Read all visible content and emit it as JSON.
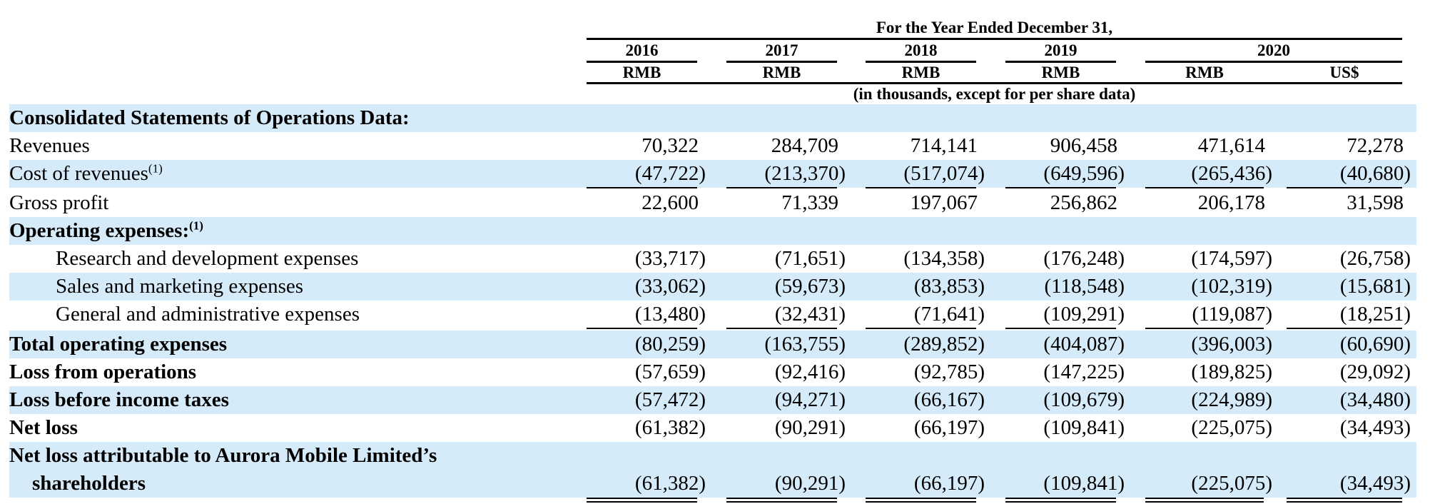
{
  "header": {
    "period_title": "For the Year Ended December 31,",
    "years": [
      "2016",
      "2017",
      "2018",
      "2019",
      "2020"
    ],
    "currencies": [
      "RMB",
      "RMB",
      "RMB",
      "RMB",
      "RMB",
      "US$"
    ],
    "units_note": "(in thousands, except for per share data)"
  },
  "colors": {
    "row_shade": "#d6ebf9"
  },
  "rows": [
    {
      "label": "Consolidated Statements of Operations Data:",
      "style": "bold",
      "shade": true,
      "values": []
    },
    {
      "label": "Revenues",
      "style": "normal",
      "shade": false,
      "values": [
        "70,322",
        "284,709",
        "714,141",
        "906,458",
        "471,614",
        "72,278"
      ]
    },
    {
      "label": "Cost of revenues",
      "footnote": "(1)",
      "style": "normal",
      "shade": true,
      "values": [
        "(47,722)",
        "(213,370)",
        "(517,074)",
        "(649,596)",
        "(265,436)",
        "(40,680)"
      ]
    },
    {
      "label": "Gross profit",
      "style": "normal",
      "shade": false,
      "values": [
        "22,600",
        "71,339",
        "197,067",
        "256,862",
        "206,178",
        "31,598"
      ]
    },
    {
      "label": "Operating expenses:",
      "footnote": "(1)",
      "style": "bold",
      "shade": true,
      "values": []
    },
    {
      "label": "Research and development expenses",
      "style": "indent",
      "shade": false,
      "values": [
        "(33,717)",
        "(71,651)",
        "(134,358)",
        "(176,248)",
        "(174,597)",
        "(26,758)"
      ]
    },
    {
      "label": "Sales and marketing expenses",
      "style": "indent",
      "shade": true,
      "values": [
        "(33,062)",
        "(59,673)",
        "(83,853)",
        "(118,548)",
        "(102,319)",
        "(15,681)"
      ]
    },
    {
      "label": "General and administrative expenses",
      "style": "indent",
      "shade": false,
      "values": [
        "(13,480)",
        "(32,431)",
        "(71,641)",
        "(109,291)",
        "(119,087)",
        "(18,251)"
      ]
    },
    {
      "label": "Total operating expenses",
      "style": "bold",
      "shade": true,
      "values": [
        "(80,259)",
        "(163,755)",
        "(289,852)",
        "(404,087)",
        "(396,003)",
        "(60,690)"
      ]
    },
    {
      "label": "Loss from operations",
      "style": "bold",
      "shade": false,
      "values": [
        "(57,659)",
        "(92,416)",
        "(92,785)",
        "(147,225)",
        "(189,825)",
        "(29,092)"
      ]
    },
    {
      "label": "Loss before income taxes",
      "style": "bold",
      "shade": true,
      "values": [
        "(57,472)",
        "(94,271)",
        "(66,167)",
        "(109,679)",
        "(224,989)",
        "(34,480)"
      ]
    },
    {
      "label": "Net loss",
      "style": "bold",
      "shade": false,
      "values": [
        "(61,382)",
        "(90,291)",
        "(66,197)",
        "(109,841)",
        "(225,075)",
        "(34,493)"
      ]
    },
    {
      "label": "Net loss attributable to Aurora Mobile Limited’s",
      "label2": "shareholders",
      "style": "bold",
      "shade": true,
      "values": [
        "(61,382)",
        "(90,291)",
        "(66,197)",
        "(109,841)",
        "(225,075)",
        "(34,493)"
      ]
    }
  ]
}
